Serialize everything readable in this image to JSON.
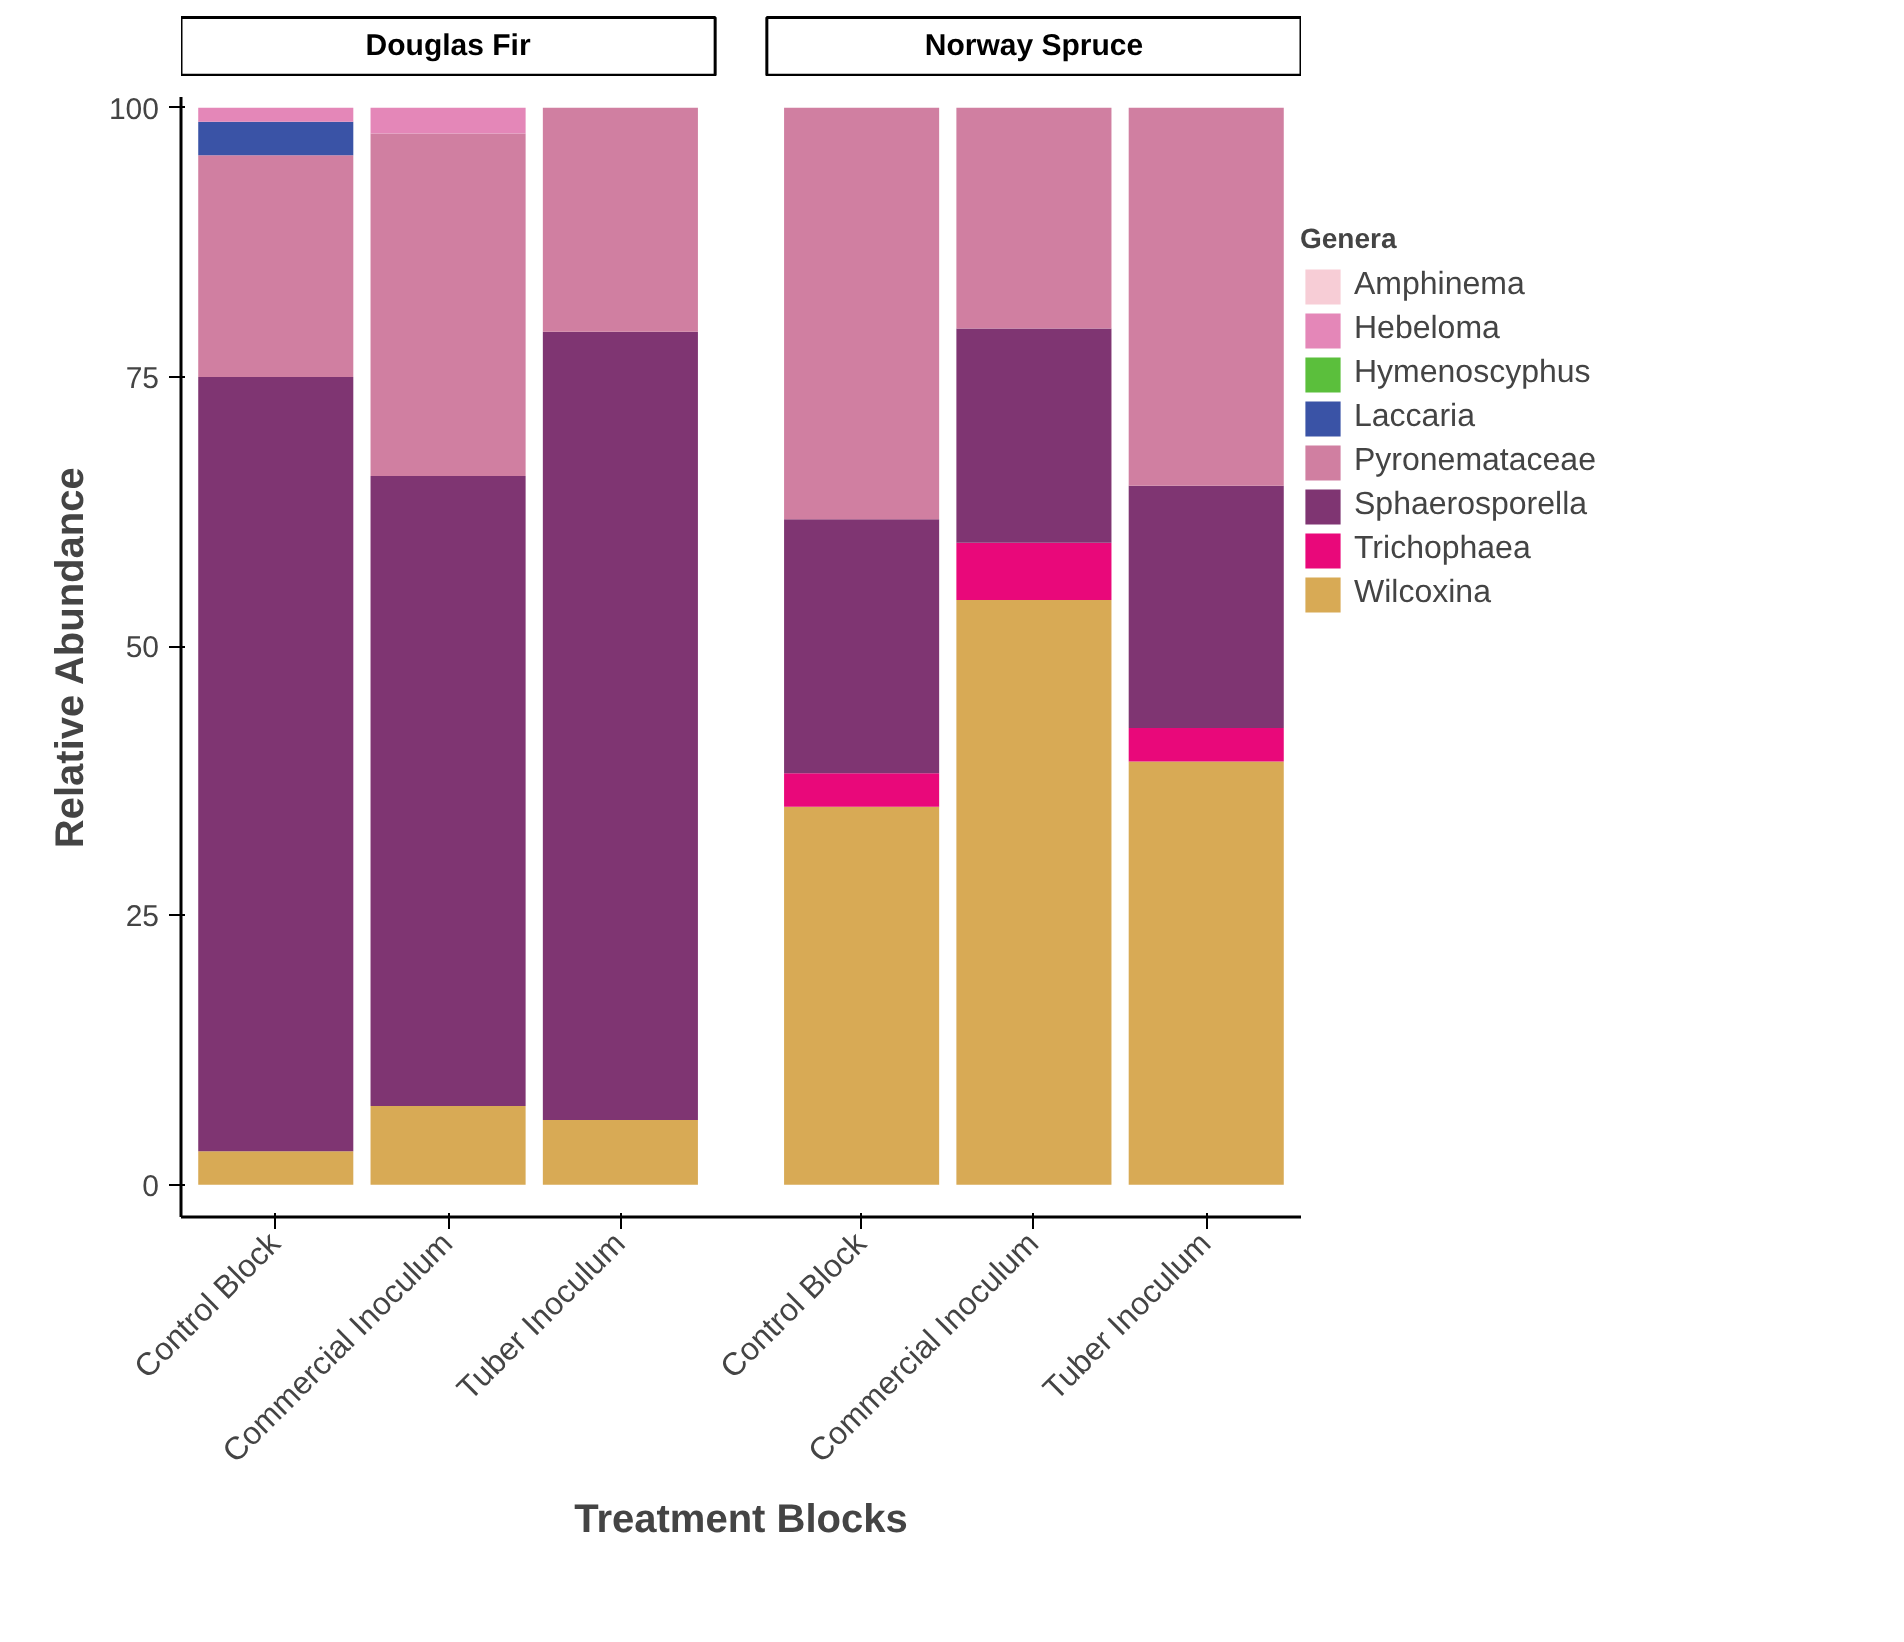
{
  "chart_data": {
    "type": "bar",
    "ylabel": "Relative Abundance",
    "xlabel": "Treatment Blocks",
    "stacked": true,
    "annotations": [
      "Douglas Fir",
      "Norway Spruce"
    ],
    "categories": [
      "Control Block",
      "Commercial Inoculum",
      "Tuber Inoculum",
      "Control Block",
      "Commercial Inoculum",
      "Tuber Inoculum"
    ],
    "ylim": [
      -3,
      101
    ],
    "yticks": [
      0,
      25,
      50,
      75,
      100
    ],
    "grid": false,
    "legend": "right",
    "legend_title": "Genera",
    "series": [
      {
        "name": "Wilcoxina",
        "color": "#d8aa55",
        "values": [
          3.1,
          7.3,
          6,
          35.1,
          54.3,
          39.3
        ]
      },
      {
        "name": "Trichophaea",
        "color": "#e9087a",
        "values": [
          0,
          0,
          0,
          3.1,
          5.3,
          3.1
        ]
      },
      {
        "name": "Sphaerosporella",
        "color": "#7f3572",
        "values": [
          71.9,
          58.5,
          73.2,
          23.6,
          19.9,
          22.5
        ]
      },
      {
        "name": "Pyronemataceae",
        "color": "#d07fa1",
        "values": [
          20.6,
          31.8,
          20.8,
          38.2,
          20.5,
          35.1
        ]
      },
      {
        "name": "Laccaria",
        "color": "#3a53a6",
        "values": [
          3.1,
          0,
          0,
          0,
          0,
          0
        ]
      },
      {
        "name": "Hymenoscyphus",
        "color": "#5bbf3c",
        "values": [
          0,
          0,
          0,
          0,
          0,
          0
        ]
      },
      {
        "name": "Hebeloma",
        "color": "#e487b8",
        "values": [
          1.3,
          2.4,
          0,
          0,
          0,
          0
        ]
      },
      {
        "name": "Amphinema",
        "color": "#f7cdd6",
        "values": [
          0,
          0,
          0,
          0,
          0,
          0
        ]
      }
    ]
  }
}
